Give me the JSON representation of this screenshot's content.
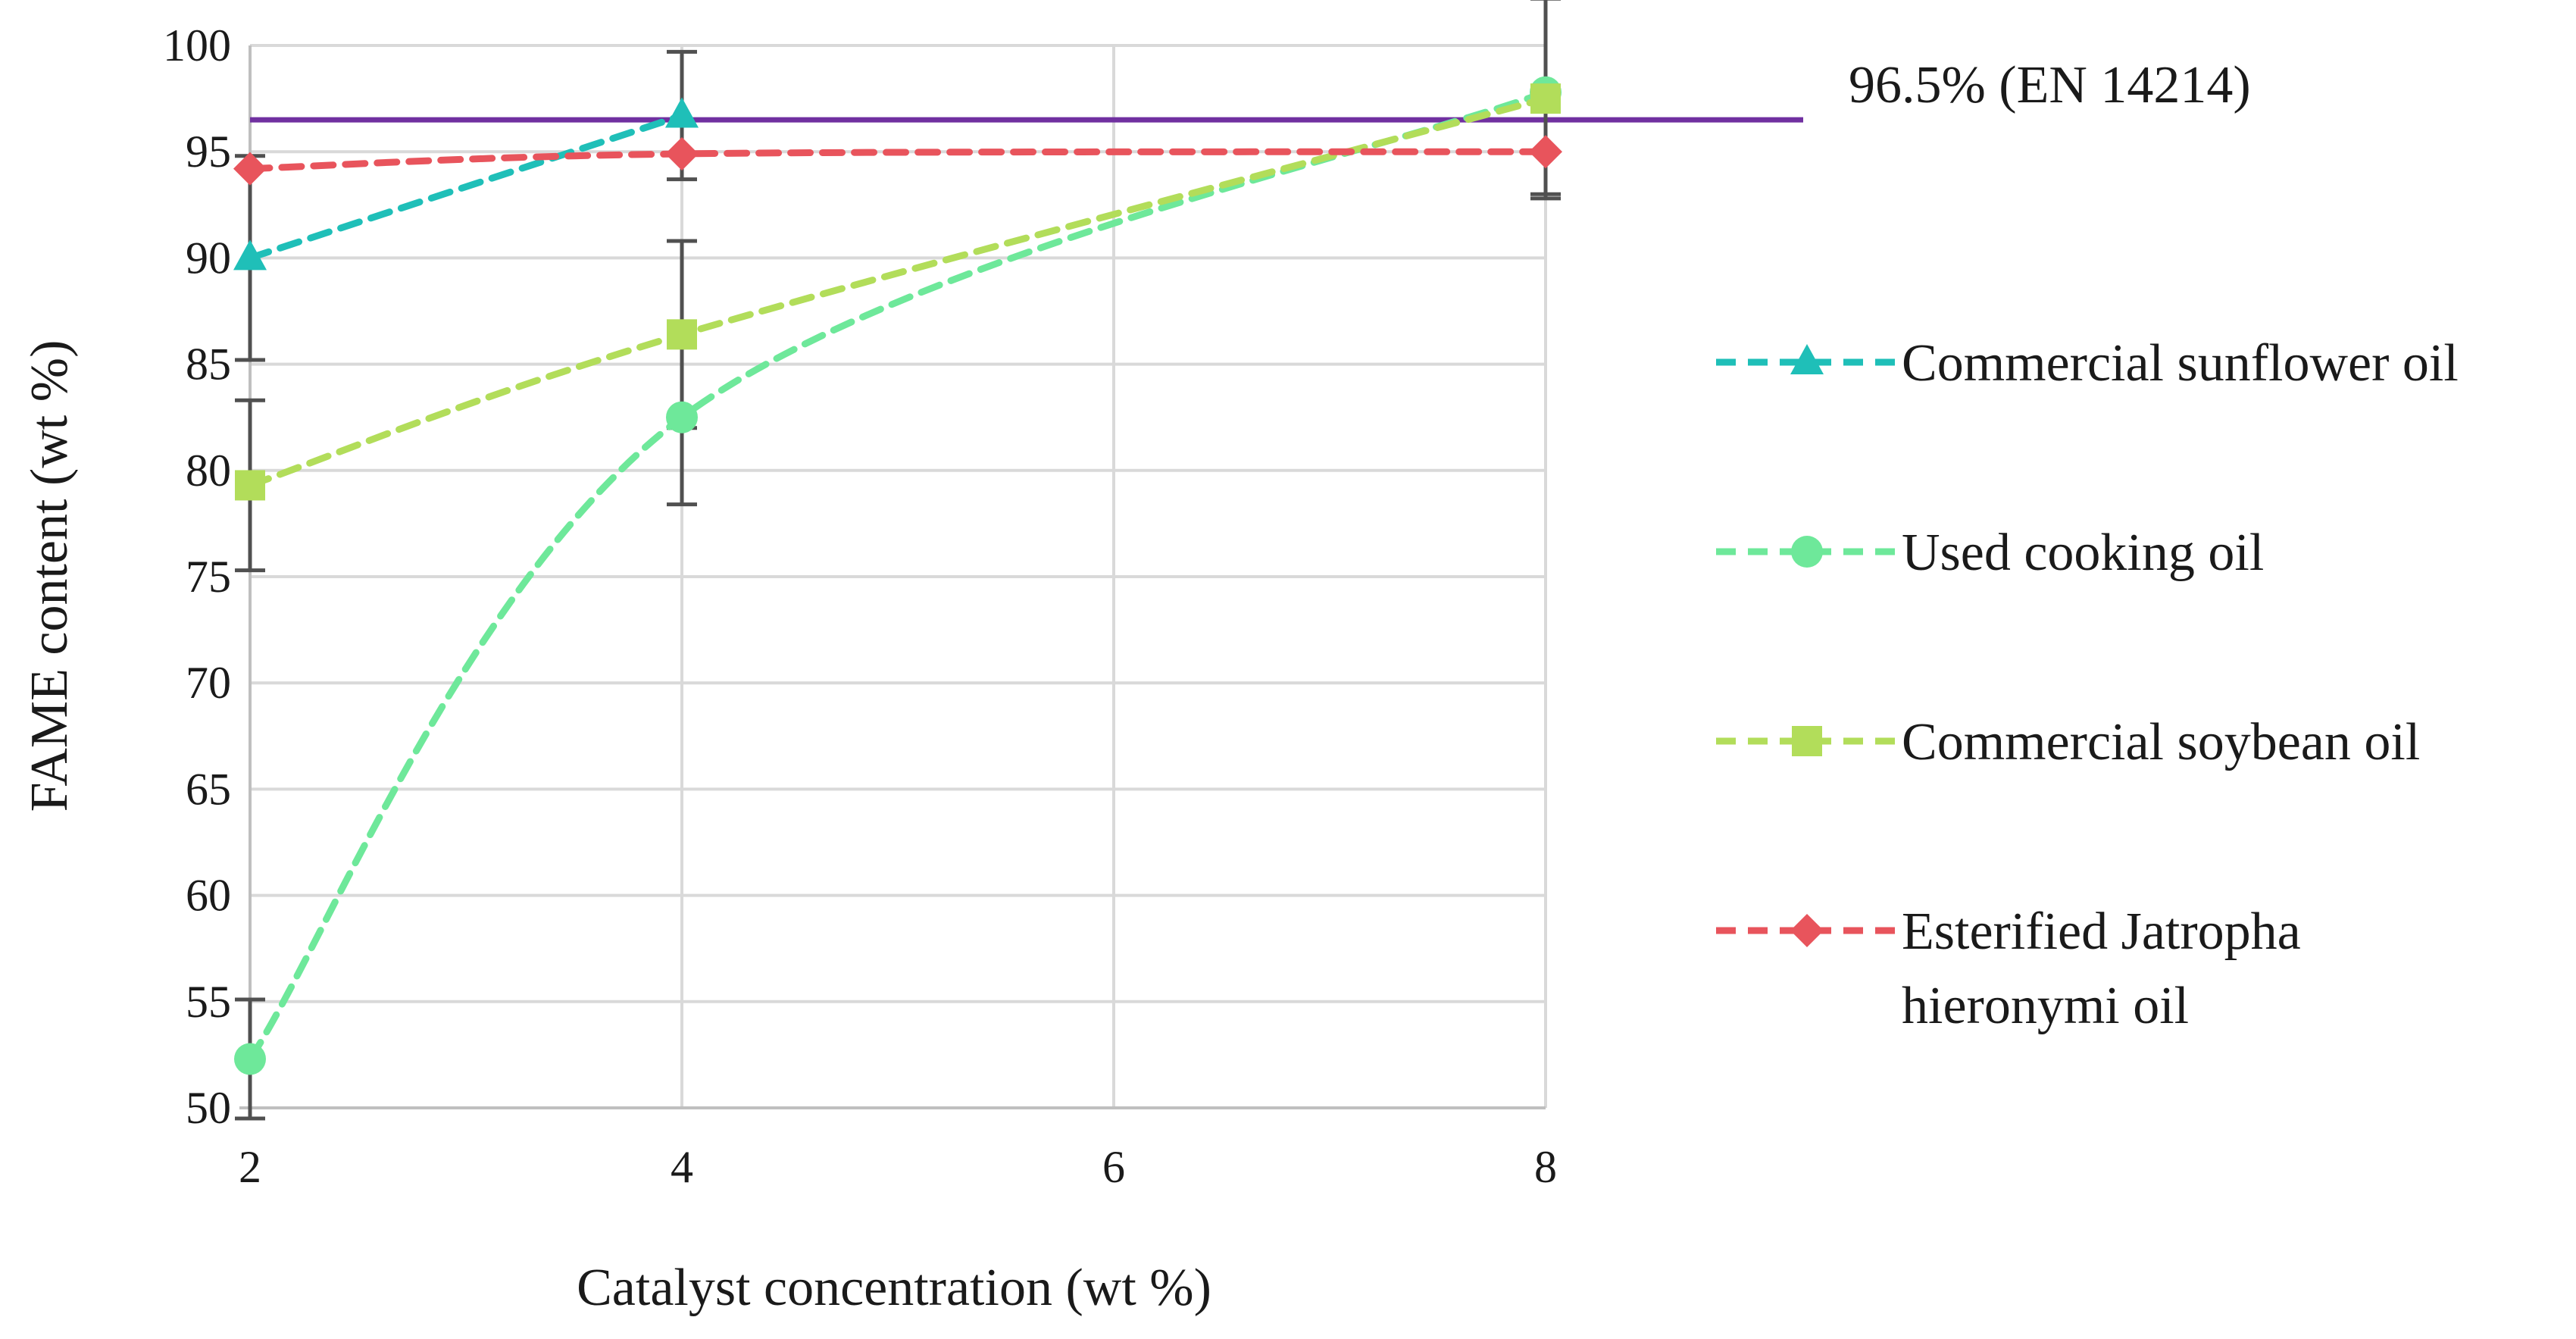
{
  "chart_data": {
    "type": "line",
    "title": "",
    "xlabel": "Catalyst concentration (wt %)",
    "ylabel": "FAME content (wt %)",
    "xlim": [
      2,
      8
    ],
    "ylim": [
      50,
      100
    ],
    "x_ticks": [
      "2",
      "4",
      "6",
      "8"
    ],
    "y_ticks": [
      "50",
      "55",
      "60",
      "65",
      "70",
      "75",
      "80",
      "85",
      "90",
      "95",
      "100"
    ],
    "grid": true,
    "legend_position": "right",
    "reference_line": {
      "value": 96.5,
      "label": "96.5% (EN 14214)",
      "color": "#7030a0"
    },
    "series": [
      {
        "name": "Commercial sunflower oil",
        "color": "#1fbfb8",
        "marker": "triangle",
        "x": [
          2,
          4
        ],
        "values": [
          90,
          96.7
        ],
        "error": [
          4.8,
          3.0
        ]
      },
      {
        "name": "Used cooking oil",
        "color": "#6ee89a",
        "marker": "circle",
        "x": [
          2,
          4,
          8
        ],
        "values": [
          52.3,
          82.5,
          97.8
        ],
        "error": [
          2.8,
          4.1,
          4.8
        ]
      },
      {
        "name": "Commercial soybean oil",
        "color": "#b2dd5a",
        "marker": "square",
        "x": [
          2,
          4,
          8
        ],
        "values": [
          79.3,
          86.4,
          97.5
        ],
        "error": [
          4.0,
          4.4,
          4.7
        ]
      },
      {
        "name": "Esterified Jatropha hieronymi oil",
        "name_lines": [
          "Esterified Jatropha",
          "hieronymi oil"
        ],
        "color": "#e8545c",
        "marker": "diamond",
        "x": [
          2,
          4,
          8
        ],
        "values": [
          94.2,
          94.9,
          95.0
        ],
        "error": [
          0,
          0,
          0
        ]
      }
    ]
  }
}
